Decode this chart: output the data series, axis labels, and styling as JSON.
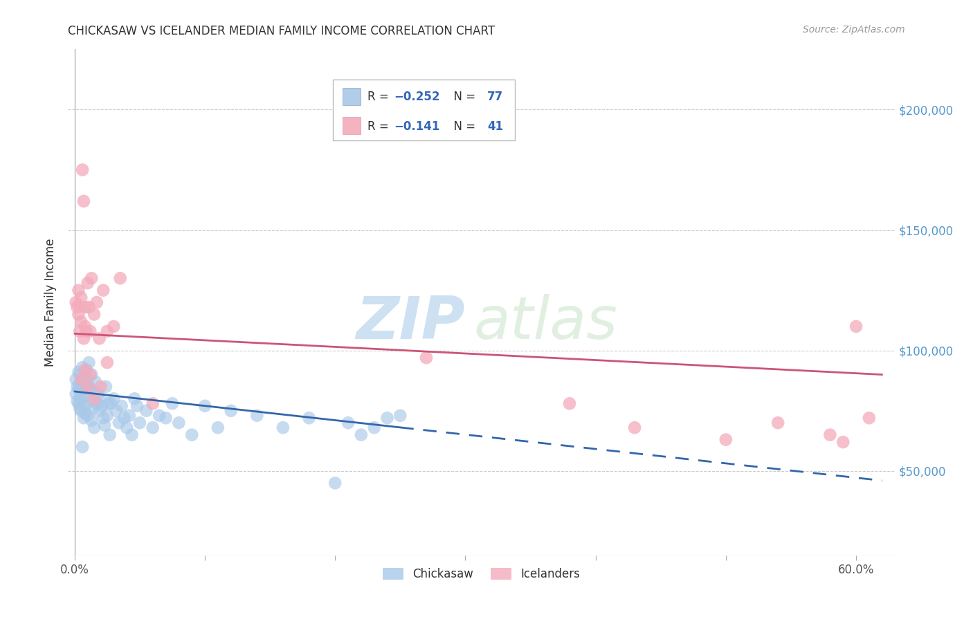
{
  "title": "CHICKASAW VS ICELANDER MEDIAN FAMILY INCOME CORRELATION CHART",
  "source": "Source: ZipAtlas.com",
  "ylabel": "Median Family Income",
  "ytick_values": [
    50000,
    100000,
    150000,
    200000
  ],
  "ylim": [
    15000,
    225000
  ],
  "xlim": [
    -0.005,
    0.63
  ],
  "blue_color": "#A8C8E8",
  "pink_color": "#F4AABB",
  "blue_line_color": "#3366AA",
  "pink_line_color": "#CC5577",
  "watermark": "ZIPatlas",
  "chickasaw_x": [
    0.001,
    0.001,
    0.002,
    0.002,
    0.003,
    0.003,
    0.003,
    0.004,
    0.004,
    0.004,
    0.005,
    0.005,
    0.005,
    0.006,
    0.006,
    0.007,
    0.007,
    0.007,
    0.008,
    0.008,
    0.009,
    0.009,
    0.01,
    0.01,
    0.011,
    0.011,
    0.012,
    0.012,
    0.013,
    0.013,
    0.014,
    0.015,
    0.015,
    0.016,
    0.017,
    0.018,
    0.019,
    0.02,
    0.021,
    0.022,
    0.023,
    0.024,
    0.025,
    0.026,
    0.027,
    0.028,
    0.03,
    0.032,
    0.034,
    0.036,
    0.038,
    0.04,
    0.042,
    0.044,
    0.046,
    0.048,
    0.05,
    0.055,
    0.06,
    0.065,
    0.07,
    0.075,
    0.08,
    0.09,
    0.1,
    0.11,
    0.12,
    0.14,
    0.16,
    0.18,
    0.2,
    0.21,
    0.22,
    0.23,
    0.24,
    0.25,
    0.006
  ],
  "chickasaw_y": [
    88000,
    82000,
    85000,
    79000,
    91000,
    78000,
    84000,
    76000,
    90000,
    86000,
    80000,
    87000,
    75000,
    83000,
    93000,
    72000,
    86000,
    89000,
    77000,
    74000,
    92000,
    81000,
    88000,
    73000,
    85000,
    95000,
    79000,
    84000,
    71000,
    90000,
    76000,
    83000,
    68000,
    87000,
    78000,
    82000,
    75000,
    80000,
    77000,
    72000,
    69000,
    85000,
    73000,
    78000,
    65000,
    78000,
    80000,
    75000,
    70000,
    77000,
    72000,
    68000,
    73000,
    65000,
    80000,
    77000,
    70000,
    75000,
    68000,
    73000,
    72000,
    78000,
    70000,
    65000,
    77000,
    68000,
    75000,
    73000,
    68000,
    72000,
    45000,
    70000,
    65000,
    68000,
    72000,
    73000,
    60000
  ],
  "icelander_x": [
    0.001,
    0.002,
    0.003,
    0.003,
    0.004,
    0.005,
    0.005,
    0.006,
    0.007,
    0.007,
    0.008,
    0.008,
    0.009,
    0.01,
    0.011,
    0.012,
    0.013,
    0.015,
    0.017,
    0.019,
    0.022,
    0.025,
    0.03,
    0.035,
    0.27,
    0.38,
    0.43,
    0.5,
    0.54,
    0.58,
    0.6,
    0.005,
    0.008,
    0.01,
    0.012,
    0.015,
    0.02,
    0.025,
    0.06,
    0.61,
    0.59
  ],
  "icelander_y": [
    120000,
    118000,
    115000,
    125000,
    108000,
    122000,
    112000,
    175000,
    105000,
    162000,
    110000,
    118000,
    108000,
    128000,
    118000,
    108000,
    130000,
    115000,
    120000,
    105000,
    125000,
    108000,
    110000,
    130000,
    97000,
    78000,
    68000,
    63000,
    70000,
    65000,
    110000,
    88000,
    92000,
    85000,
    90000,
    80000,
    85000,
    95000,
    78000,
    72000,
    62000
  ]
}
